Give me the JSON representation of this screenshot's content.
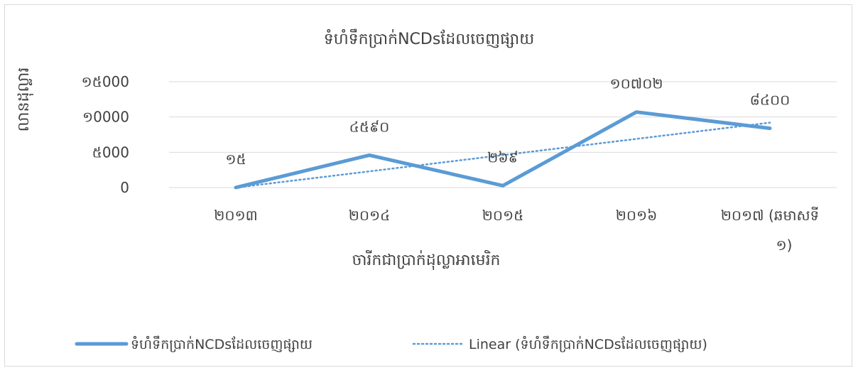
{
  "chart_data": {
    "type": "line",
    "title": "ទំហំទឹកប្រាក់NCDsដែលចេញផ្សាយ",
    "xlabel": "ចារីកជាប្រាក់ដុល្លាអាមេរិក",
    "ylabel": "លានដុល្លារ",
    "categories": [
      "២០១៣",
      "២០១៤",
      "២០១៥",
      "២០១៦",
      "២០១៧ (ឆមាសទី១)"
    ],
    "ylim": [
      0,
      15000
    ],
    "yticks": [
      0,
      5000,
      10000,
      15000
    ],
    "ytick_labels": [
      "0",
      "៥000",
      "១0000",
      "១៥000"
    ],
    "grid": true,
    "legend_position": "bottom",
    "series": [
      {
        "name": "ទំហំទឹកប្រាក់NCDsដែលចេញផ្សាយ",
        "values": [
          15,
          4590,
          269,
          10702,
          8400
        ],
        "data_labels": [
          "១៥",
          "៤៥៩០",
          "២៦៩",
          "១០៧០២",
          "៨៤០០"
        ],
        "color": "#5b9bd5",
        "style": "solid"
      },
      {
        "name": "Linear (ទំហំទឹកប្រាក់NCDsដែលចេញផ្សាយ)",
        "values": [
          0,
          2300,
          4600,
          6900,
          9200
        ],
        "color": "#5b9bd5",
        "style": "dotted"
      }
    ]
  }
}
